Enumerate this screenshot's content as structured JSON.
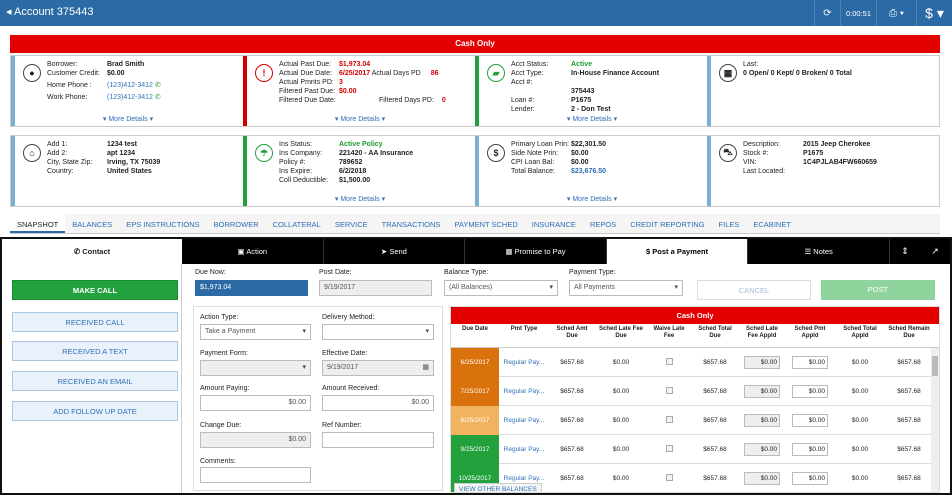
{
  "header": {
    "title": "Account 375443",
    "timer": "0:00:51"
  },
  "colors": {
    "header": "#2c6aa5",
    "alert": "#e20000",
    "green": "#23a13d",
    "link": "#2f6fb7"
  },
  "banner": "Cash Only",
  "more_details": "More Details",
  "borrower": {
    "k1": "Borrower:",
    "v1": "Brad Smith",
    "k2": "Customer Credit:",
    "v2": "$0.00",
    "k3": "Home Phone :",
    "v3": "(123)412-3412",
    "k4": "Work Phone:",
    "v4": "(123)412-3412"
  },
  "pastdue": {
    "k1": "Actual Past Due:",
    "v1": "$1,973.04",
    "k2": "Actual Due Date:",
    "v2": "6/25/2017",
    "k2b": "Actual Days PD",
    "v2b": "86",
    "k3": "Actual Pmnts PD:",
    "v3": "3",
    "k4": "Filtered Past Due:",
    "v4": "$0.00",
    "k5": "Filtered Due Date:",
    "k5b": "Filtered Days PD:",
    "v5b": "0"
  },
  "acct": {
    "k1": "Acct Status:",
    "v1": "Active",
    "k2": "Acct Type:",
    "v2": "In-House Finance Account",
    "k3": "Acct #:",
    "v3": "375443",
    "k4": "Loan #:",
    "v4": "P1675",
    "k5": "Lender:",
    "v5": "2 - Don Test"
  },
  "last": {
    "k1": "Last:",
    "v1": "0 Open/ 0 Kept/ 0 Broken/ 0 Total"
  },
  "address": {
    "k1": "Add 1:",
    "v1": "1234 test",
    "k2": "Add 2:",
    "v2": "apt 1234",
    "k3": "City, State Zip:",
    "v3": "Irving, TX 75039",
    "k4": "Country:",
    "v4": "United States"
  },
  "ins": {
    "k1": "Ins Status:",
    "v1": "Active Policy",
    "k2": "Ins Company:",
    "v2": "221420 - AA Insurance",
    "k3": "Policy #:",
    "v3": "789652",
    "k4": "Ins Expire:",
    "v4": "6/2/2018",
    "k5": "Coll Deductible:",
    "v5": "$1,500.00"
  },
  "loan": {
    "k1": "Primary Loan Prin:",
    "v1": "$22,301.50",
    "k2": "Side Note Prin:",
    "v2": "$0.00",
    "k3": "CPI Loan Bal:",
    "v3": "$0.00",
    "k4": "Total Balance:",
    "v4": "$23,676.50"
  },
  "vehicle": {
    "k1": "Description:",
    "v1": "2015 Jeep Cherokee",
    "k2": "Stock #:",
    "v2": "P1675",
    "k3": "VIN:",
    "v3": "1C4PJLAB4FW660659",
    "k4": "Last Located:"
  },
  "tabs": [
    "SNAPSHOT",
    "BALANCES",
    "EPS INSTRUCTIONS",
    "BORROWER",
    "COLLATERAL",
    "SERVICE",
    "TRANSACTIONS",
    "PAYMENT SCHED",
    "INSURANCE",
    "REPOS",
    "CREDIT REPORTING",
    "FILES",
    "ECABINET"
  ],
  "lower": {
    "contact": "Contact",
    "actions": [
      "Action",
      "Send",
      "Promise to Pay",
      "Post a Payment",
      "Notes"
    ],
    "left_buttons": [
      "MAKE CALL",
      "RECEIVED CALL",
      "RECEIVED A TEXT",
      "RECEIVED AN EMAIL",
      "ADD FOLLOW UP DATE"
    ]
  },
  "form": {
    "due_now_label": "Due Now:",
    "due_now": "$1,973.04",
    "post_date_label": "Post Date:",
    "post_date": "9/19/2017",
    "balance_type_label": "Balance Type:",
    "balance_type": "(All Balances)",
    "payment_type_label": "Payment Type:",
    "payment_type": "All Payments",
    "cancel": "CANCEL",
    "post": "POST",
    "action_type_label": "Action Type:",
    "action_type": "Take a Payment",
    "delivery_label": "Delivery Method:",
    "payment_form_label": "Payment Form:",
    "effective_label": "Effective Date:",
    "effective": "9/19/2017",
    "amount_paying_label": "Amount Paying:",
    "amount_paying": "$0.00",
    "amount_received_label": "Amount Received:",
    "amount_received": "$0.00",
    "change_due_label": "Change Due:",
    "change_due": "$0.00",
    "ref_label": "Ref Number:",
    "comments_label": "Comments:"
  },
  "grid": {
    "headers": [
      "Due Date",
      "Pmt Type",
      "Sched Amt Due",
      "Sched Late Fee Due",
      "Waive Late Fee",
      "Sched Total Due",
      "Sched Late Fee Appld",
      "Sched Pmt Appld",
      "Sched Total Appld",
      "Sched Remain Due"
    ],
    "rows": [
      {
        "date": "6/25/2017",
        "color": "#d9720c",
        "type": "Regular Pay...",
        "amt": "$657.68",
        "late": "$0.00",
        "total": "$657.68",
        "lfa": "$0.00",
        "pmt": "$0.00",
        "tappld": "$0.00",
        "remain": "$657.68"
      },
      {
        "date": "7/25/2017",
        "color": "#d9720c",
        "type": "Regular Pay...",
        "amt": "$657.68",
        "late": "$0.00",
        "total": "$657.68",
        "lfa": "$0.00",
        "pmt": "$0.00",
        "tappld": "$0.00",
        "remain": "$657.68"
      },
      {
        "date": "8/25/2017",
        "color": "#f2b361",
        "type": "Regular Pay...",
        "amt": "$657.68",
        "late": "$0.00",
        "total": "$657.68",
        "lfa": "$0.00",
        "pmt": "$0.00",
        "tappld": "$0.00",
        "remain": "$657.68"
      },
      {
        "date": "9/25/2017",
        "color": "#23a13d",
        "type": "Regular Pay...",
        "amt": "$657.68",
        "late": "$0.00",
        "total": "$657.68",
        "lfa": "$0.00",
        "pmt": "$0.00",
        "tappld": "$0.00",
        "remain": "$657.68"
      },
      {
        "date": "10/25/2017",
        "color": "#23a13d",
        "type": "Regular Pay...",
        "amt": "$657.68",
        "late": "$0.00",
        "total": "$657.68",
        "lfa": "$0.00",
        "pmt": "$0.00",
        "tappld": "$0.00",
        "remain": "$657.68"
      }
    ],
    "view_other": "VIEW OTHER BALANCES"
  }
}
